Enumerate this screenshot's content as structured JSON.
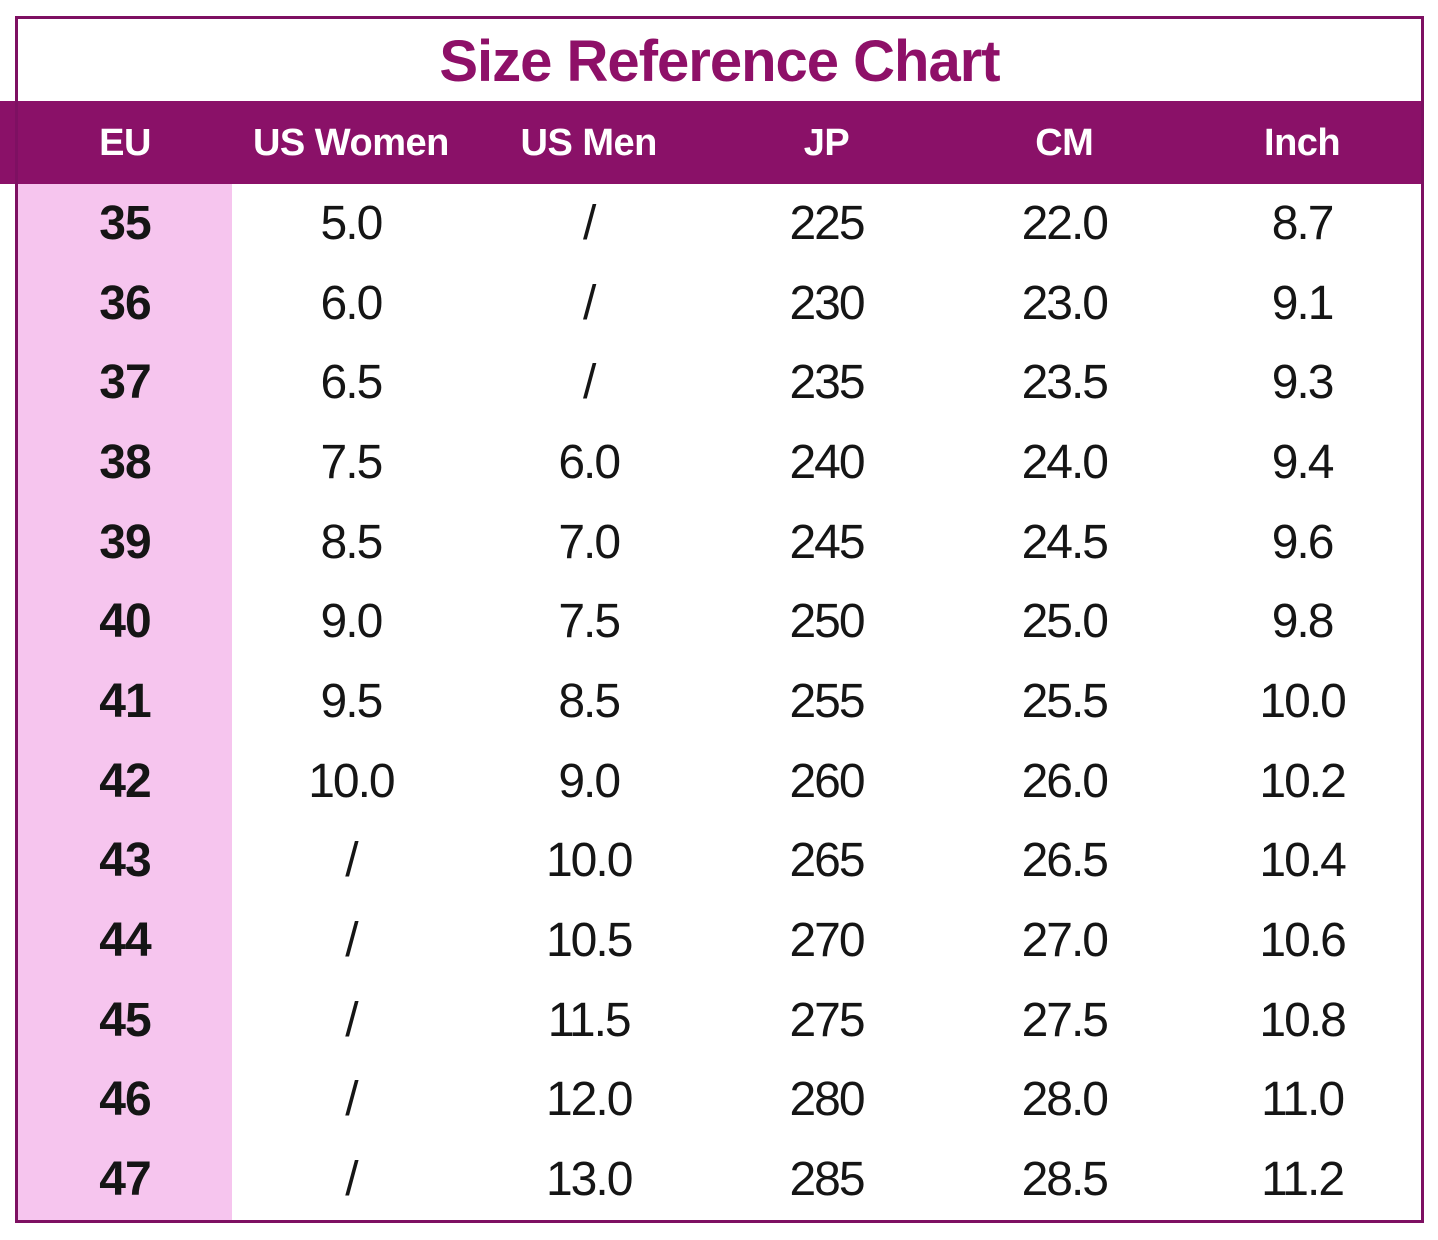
{
  "title": "Size Reference Chart",
  "colors": {
    "accent_band": "#8A1168",
    "frame_border": "#7E1062",
    "title_text": "#8E1068",
    "header_text": "#FFFFFF",
    "eu_column_pink": "#F6C5EE",
    "body_text": "#151515"
  },
  "table": {
    "columns": [
      "EU",
      "US Women",
      "US Men",
      "JP",
      "CM",
      "Inch"
    ],
    "rows": [
      [
        "35",
        "5.0",
        "/",
        "225",
        "22.0",
        "8.7"
      ],
      [
        "36",
        "6.0",
        "/",
        "230",
        "23.0",
        "9.1"
      ],
      [
        "37",
        "6.5",
        "/",
        "235",
        "23.5",
        "9.3"
      ],
      [
        "38",
        "7.5",
        "6.0",
        "240",
        "24.0",
        "9.4"
      ],
      [
        "39",
        "8.5",
        "7.0",
        "245",
        "24.5",
        "9.6"
      ],
      [
        "40",
        "9.0",
        "7.5",
        "250",
        "25.0",
        "9.8"
      ],
      [
        "41",
        "9.5",
        "8.5",
        "255",
        "25.5",
        "10.0"
      ],
      [
        "42",
        "10.0",
        "9.0",
        "260",
        "26.0",
        "10.2"
      ],
      [
        "43",
        "/",
        "10.0",
        "265",
        "26.5",
        "10.4"
      ],
      [
        "44",
        "/",
        "10.5",
        "270",
        "27.0",
        "10.6"
      ],
      [
        "45",
        "/",
        "11.5",
        "275",
        "27.5",
        "10.8"
      ],
      [
        "46",
        "/",
        "12.0",
        "280",
        "28.0",
        "11.0"
      ],
      [
        "47",
        "/",
        "13.0",
        "285",
        "28.5",
        "11.2"
      ]
    ]
  }
}
